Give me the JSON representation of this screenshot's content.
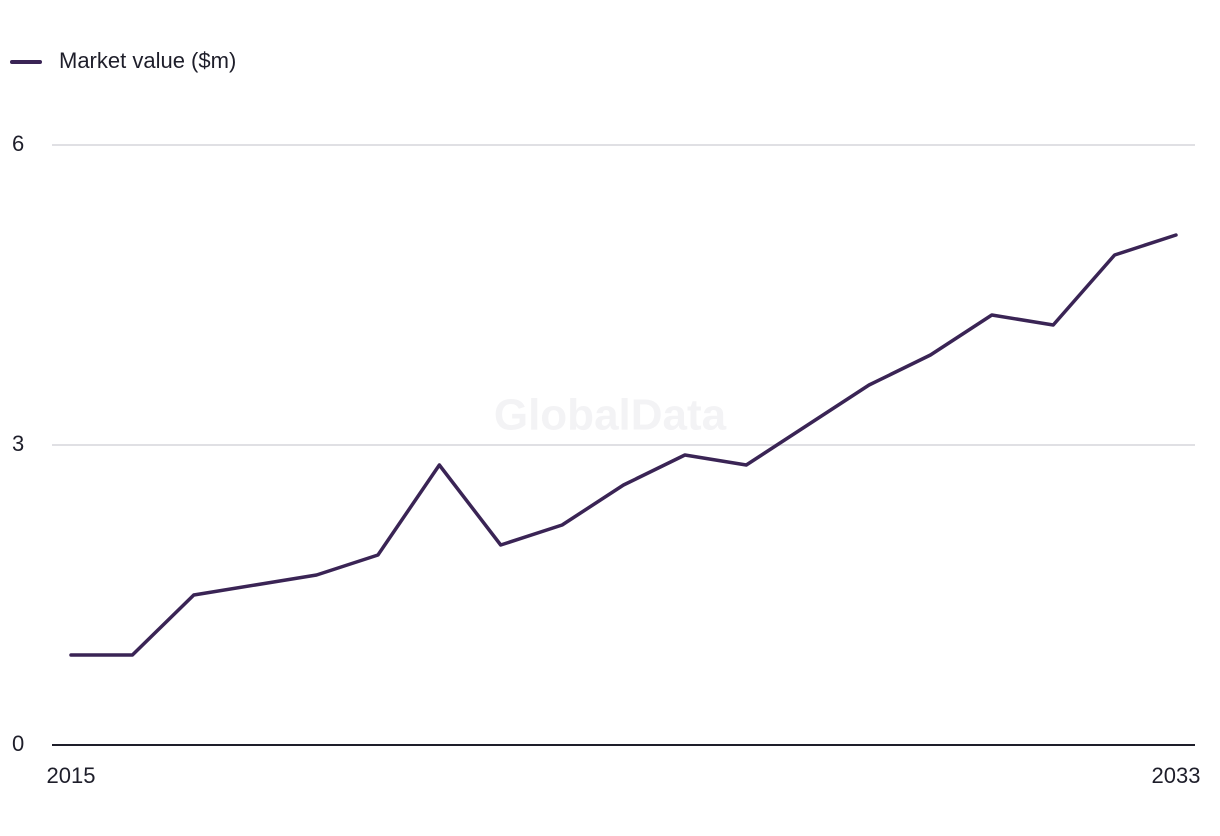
{
  "chart_data": {
    "type": "line",
    "watermark": "GlobalData",
    "x": [
      2015,
      2016,
      2017,
      2018,
      2019,
      2020,
      2021,
      2022,
      2023,
      2024,
      2025,
      2026,
      2027,
      2028,
      2029,
      2030,
      2031,
      2032,
      2033
    ],
    "series": [
      {
        "name": "Market value ($m)",
        "color": "#3a2455",
        "values": [
          0.9,
          0.9,
          1.5,
          1.6,
          1.7,
          1.9,
          2.8,
          2.0,
          2.2,
          2.6,
          2.9,
          2.8,
          3.2,
          3.6,
          3.9,
          4.3,
          4.2,
          4.9,
          5.1
        ]
      }
    ],
    "xlim": [
      2015,
      2033
    ],
    "xticks": [
      2015,
      2033
    ],
    "ylim": [
      0,
      6
    ],
    "yticks": [
      0,
      3,
      6
    ],
    "grid": true,
    "legend": "top-left"
  }
}
